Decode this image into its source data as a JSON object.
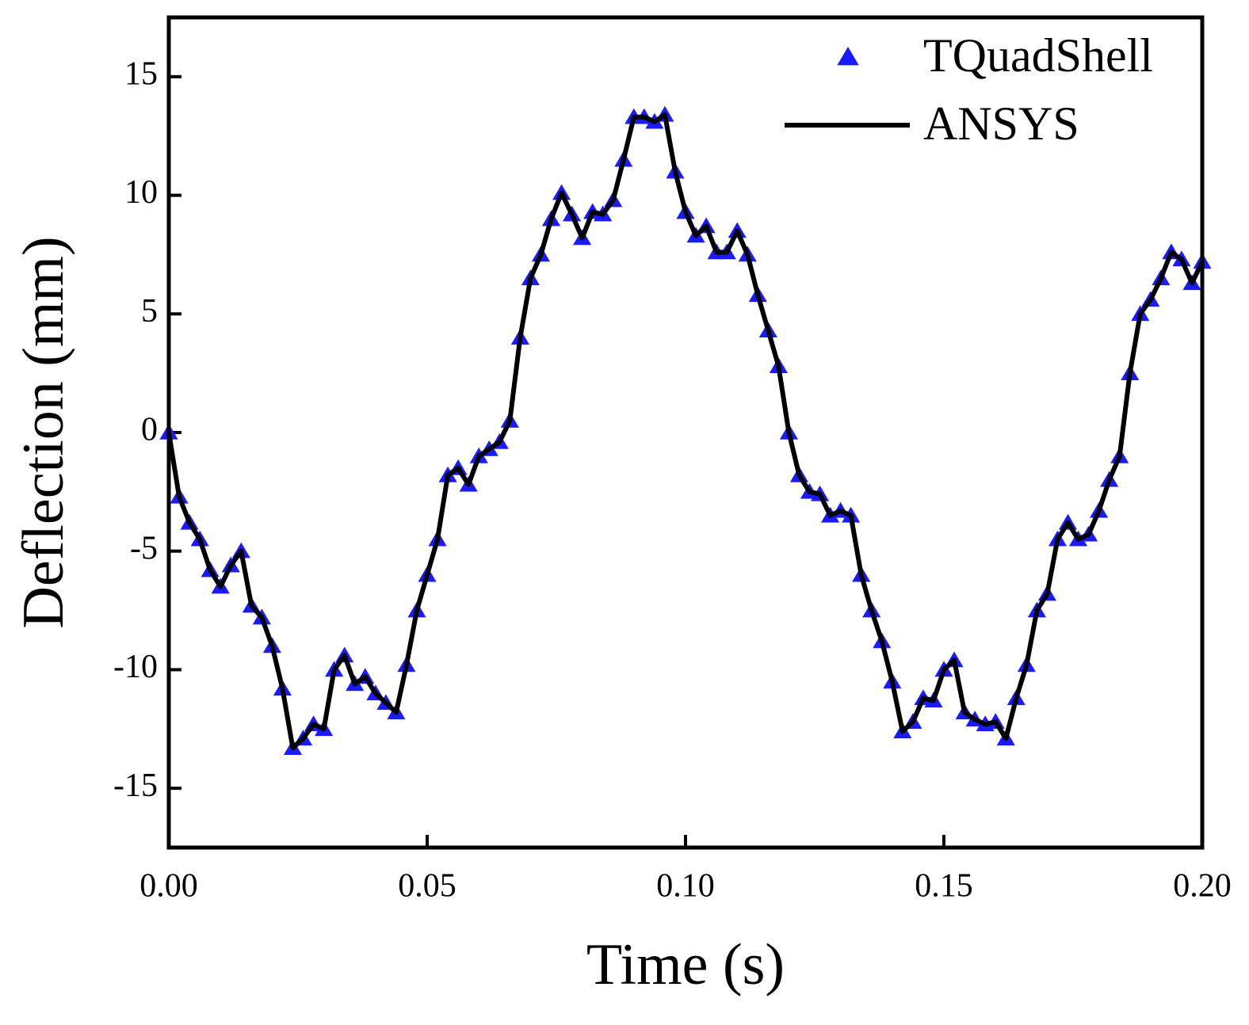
{
  "chart_data": {
    "type": "line",
    "x_label": "Time (s)",
    "y_label": "Deflection (mm)",
    "x": [
      0,
      0.002,
      0.004,
      0.006,
      0.008,
      0.01,
      0.012,
      0.014,
      0.016,
      0.018,
      0.02,
      0.022,
      0.024,
      0.026,
      0.028,
      0.03,
      0.032,
      0.034,
      0.036,
      0.038,
      0.04,
      0.042,
      0.044,
      0.046,
      0.048,
      0.05,
      0.052,
      0.054,
      0.056,
      0.058,
      0.06,
      0.062,
      0.064,
      0.066,
      0.068,
      0.07,
      0.072,
      0.074,
      0.076,
      0.078,
      0.08,
      0.082,
      0.084,
      0.086,
      0.088,
      0.09,
      0.092,
      0.094,
      0.096,
      0.098,
      0.1,
      0.102,
      0.104,
      0.106,
      0.108,
      0.11,
      0.112,
      0.114,
      0.116,
      0.118,
      0.12,
      0.122,
      0.124,
      0.126,
      0.128,
      0.13,
      0.132,
      0.134,
      0.136,
      0.138,
      0.14,
      0.142,
      0.144,
      0.146,
      0.148,
      0.15,
      0.152,
      0.154,
      0.156,
      0.158,
      0.16,
      0.162,
      0.164,
      0.166,
      0.168,
      0.17,
      0.172,
      0.174,
      0.176,
      0.178,
      0.18,
      0.182,
      0.184,
      0.186,
      0.188,
      0.19,
      0.192,
      0.194,
      0.196,
      0.198,
      0.2
    ],
    "series": [
      {
        "name": "TQuadShell",
        "color": "#1a1aff",
        "marker": "triangle",
        "values": [
          0,
          -2.7,
          -3.8,
          -4.5,
          -5.8,
          -6.5,
          -5.6,
          -5.0,
          -7.3,
          -7.8,
          -9.0,
          -10.8,
          -13.3,
          -12.9,
          -12.3,
          -12.5,
          -10.0,
          -9.4,
          -10.6,
          -10.3,
          -11.0,
          -11.4,
          -11.8,
          -9.8,
          -7.5,
          -6.0,
          -4.5,
          -1.8,
          -1.5,
          -2.2,
          -1.0,
          -0.7,
          -0.4,
          0.5,
          4.0,
          6.5,
          7.5,
          9.0,
          10.1,
          9.2,
          8.2,
          9.3,
          9.2,
          9.8,
          11.5,
          13.3,
          13.3,
          13.1,
          13.4,
          11.0,
          9.3,
          8.3,
          8.7,
          7.6,
          7.6,
          8.5,
          7.5,
          5.8,
          4.3,
          2.8,
          0,
          -1.8,
          -2.5,
          -2.6,
          -3.5,
          -3.3,
          -3.5,
          -6.0,
          -7.5,
          -8.8,
          -10.5,
          -12.6,
          -12.2,
          -11.2,
          -11.3,
          -10.0,
          -9.6,
          -11.8,
          -12.1,
          -12.3,
          -12.2,
          -12.9,
          -11.2,
          -9.8,
          -7.5,
          -6.8,
          -4.5,
          -3.8,
          -4.5,
          -4.3,
          -3.3,
          -2.0,
          -1.0,
          2.5,
          5.0,
          5.6,
          6.5,
          7.6,
          7.3,
          6.3,
          7.2
        ]
      },
      {
        "name": "ANSYS",
        "color": "#000000",
        "marker": "line",
        "values": [
          0,
          -2.7,
          -3.8,
          -4.5,
          -5.8,
          -6.5,
          -5.6,
          -5.0,
          -7.3,
          -7.8,
          -9.0,
          -10.8,
          -13.3,
          -12.9,
          -12.3,
          -12.5,
          -10.0,
          -9.4,
          -10.6,
          -10.3,
          -11.0,
          -11.4,
          -11.8,
          -9.8,
          -7.5,
          -6.0,
          -4.5,
          -1.8,
          -1.5,
          -2.2,
          -1.0,
          -0.7,
          -0.4,
          0.5,
          4.0,
          6.5,
          7.5,
          9.0,
          10.1,
          9.2,
          8.2,
          9.3,
          9.2,
          9.8,
          11.5,
          13.3,
          13.3,
          13.1,
          13.4,
          11.0,
          9.3,
          8.3,
          8.7,
          7.6,
          7.6,
          8.5,
          7.5,
          5.8,
          4.3,
          2.8,
          0,
          -1.8,
          -2.5,
          -2.6,
          -3.5,
          -3.3,
          -3.5,
          -6.0,
          -7.5,
          -8.8,
          -10.5,
          -12.6,
          -12.2,
          -11.2,
          -11.3,
          -10.0,
          -9.6,
          -11.8,
          -12.1,
          -12.3,
          -12.2,
          -12.9,
          -11.2,
          -9.8,
          -7.5,
          -6.8,
          -4.5,
          -3.8,
          -4.5,
          -4.3,
          -3.3,
          -2.0,
          -1.0,
          2.5,
          5.0,
          5.6,
          6.5,
          7.6,
          7.3,
          6.3,
          7.2
        ]
      }
    ],
    "xlim": [
      0,
      0.2
    ],
    "xticks": [
      {
        "value": 0,
        "label": "0.00"
      },
      {
        "value": 0.05,
        "label": "0.05"
      },
      {
        "value": 0.1,
        "label": "0.10"
      },
      {
        "value": 0.15,
        "label": "0.15"
      },
      {
        "value": 0.2,
        "label": "0.20"
      }
    ],
    "ylim": [
      -17.5,
      17.5
    ],
    "yticks": [
      -15,
      -10,
      -5,
      0,
      5,
      10,
      15
    ],
    "legend": "upper right"
  }
}
